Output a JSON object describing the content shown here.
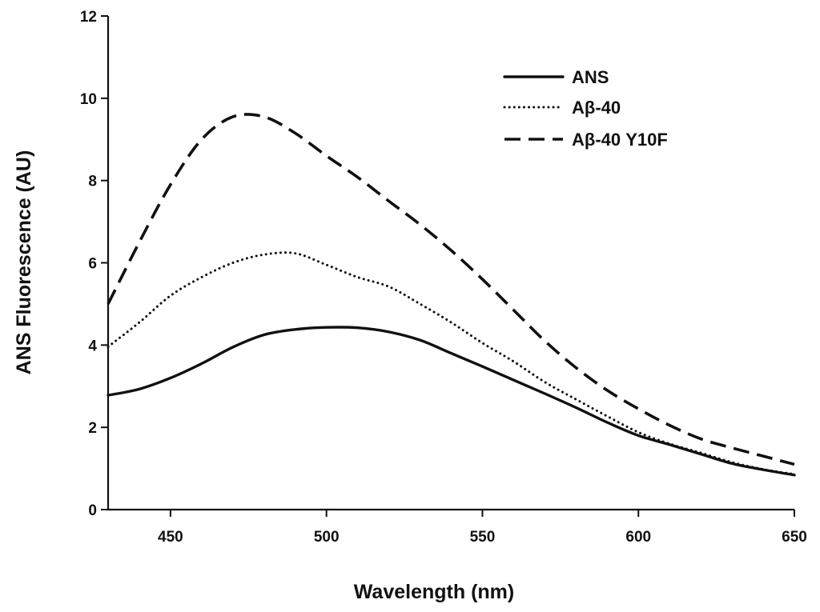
{
  "chart_data": {
    "type": "line",
    "title": "",
    "xlabel": "Wavelength (nm)",
    "ylabel": "ANS Fluorescence (AU)",
    "xlim": [
      430,
      650
    ],
    "ylim": [
      0,
      12
    ],
    "xticks": [
      450,
      500,
      550,
      600,
      650
    ],
    "yticks": [
      0,
      2,
      4,
      6,
      8,
      10,
      12
    ],
    "grid": false,
    "legend_position": "top-right",
    "x": [
      430,
      440,
      450,
      460,
      470,
      480,
      490,
      500,
      510,
      520,
      530,
      540,
      550,
      560,
      570,
      580,
      590,
      600,
      610,
      620,
      630,
      640,
      650
    ],
    "series": [
      {
        "name": "ANS",
        "style": "solid",
        "values": [
          2.78,
          2.93,
          3.2,
          3.55,
          3.95,
          4.25,
          4.38,
          4.43,
          4.42,
          4.32,
          4.12,
          3.8,
          3.48,
          3.15,
          2.82,
          2.48,
          2.12,
          1.8,
          1.58,
          1.35,
          1.12,
          0.97,
          0.84
        ]
      },
      {
        "name": "Aβ-40",
        "style": "dotted",
        "values": [
          3.96,
          4.55,
          5.2,
          5.65,
          6.0,
          6.2,
          6.23,
          5.95,
          5.65,
          5.42,
          5.0,
          4.55,
          4.05,
          3.6,
          3.1,
          2.68,
          2.27,
          1.88,
          1.6,
          1.38,
          1.15,
          0.98,
          0.86
        ]
      },
      {
        "name": "Aβ-40 Y10F",
        "style": "dashed",
        "values": [
          5.0,
          6.5,
          7.9,
          9.0,
          9.55,
          9.55,
          9.15,
          8.6,
          8.08,
          7.5,
          6.93,
          6.3,
          5.6,
          4.85,
          4.1,
          3.45,
          2.9,
          2.45,
          2.05,
          1.72,
          1.5,
          1.3,
          1.1
        ]
      }
    ]
  }
}
